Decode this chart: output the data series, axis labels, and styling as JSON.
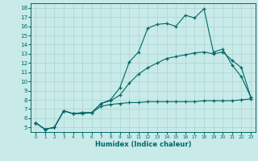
{
  "title": "",
  "xlabel": "Humidex (Indice chaleur)",
  "ylabel": "",
  "background_color": "#c8eae8",
  "grid_color": "#b0d8d4",
  "line_color": "#006868",
  "xlim": [
    -0.5,
    23.5
  ],
  "ylim": [
    4.5,
    18.5
  ],
  "xticks": [
    0,
    1,
    2,
    3,
    4,
    5,
    6,
    7,
    8,
    9,
    10,
    11,
    12,
    13,
    14,
    15,
    16,
    17,
    18,
    19,
    20,
    21,
    22,
    23
  ],
  "yticks": [
    5,
    6,
    7,
    8,
    9,
    10,
    11,
    12,
    13,
    14,
    15,
    16,
    17,
    18
  ],
  "series1_x": [
    0,
    1,
    2,
    3,
    4,
    5,
    6,
    7,
    8,
    9,
    10,
    11,
    12,
    13,
    14,
    15,
    16,
    17,
    18,
    19,
    20,
    21,
    22,
    23
  ],
  "series1_y": [
    5.5,
    4.8,
    5.0,
    6.8,
    6.5,
    6.5,
    6.6,
    7.6,
    8.0,
    9.3,
    12.1,
    13.2,
    15.8,
    16.2,
    16.3,
    16.0,
    17.2,
    16.9,
    17.9,
    13.2,
    13.5,
    11.8,
    10.5,
    8.3
  ],
  "series2_x": [
    0,
    1,
    2,
    3,
    4,
    5,
    6,
    7,
    8,
    9,
    10,
    11,
    12,
    13,
    14,
    15,
    16,
    17,
    18,
    19,
    20,
    21,
    22,
    23
  ],
  "series2_y": [
    5.5,
    4.8,
    5.0,
    6.8,
    6.5,
    6.6,
    6.6,
    7.6,
    7.9,
    8.5,
    9.8,
    10.8,
    11.5,
    12.0,
    12.5,
    12.7,
    12.9,
    13.1,
    13.2,
    13.0,
    13.2,
    12.3,
    11.5,
    8.3
  ],
  "series3_x": [
    0,
    1,
    2,
    3,
    4,
    5,
    6,
    7,
    8,
    9,
    10,
    11,
    12,
    13,
    14,
    15,
    16,
    17,
    18,
    19,
    20,
    21,
    22,
    23
  ],
  "series3_y": [
    5.5,
    4.8,
    5.0,
    6.8,
    6.5,
    6.6,
    6.6,
    7.3,
    7.5,
    7.6,
    7.7,
    7.7,
    7.8,
    7.8,
    7.8,
    7.8,
    7.8,
    7.8,
    7.9,
    7.9,
    7.9,
    7.9,
    8.0,
    8.1
  ]
}
